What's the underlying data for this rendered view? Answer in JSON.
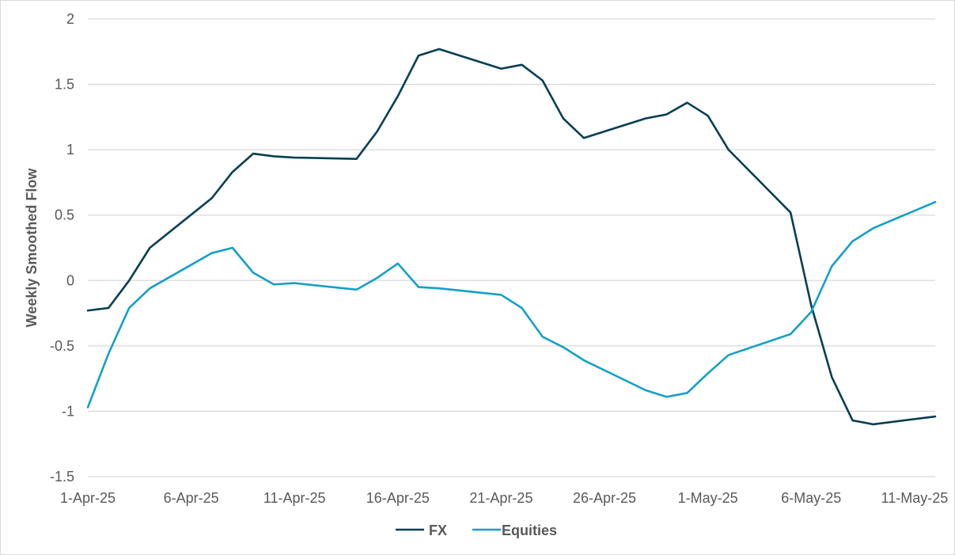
{
  "chart_data": {
    "type": "line",
    "ylabel": "Weekly Smoothed Flow",
    "xlabel": "",
    "ylim": [
      -1.5,
      2
    ],
    "yticks": [
      "2",
      "1.5",
      "1",
      "0.5",
      "0",
      "-0.5",
      "-1",
      "-1.5"
    ],
    "ytick_values": [
      2,
      1.5,
      1,
      0.5,
      0,
      -0.5,
      -1,
      -1.5
    ],
    "x_range": [
      "1-Apr-25",
      "12-May-25"
    ],
    "xticks": [
      {
        "date": "1-Apr-25",
        "label": "1-Apr-25"
      },
      {
        "date": "6-Apr-25",
        "label": "6-Apr-25"
      },
      {
        "date": "11-Apr-25",
        "label": "11-Apr-25"
      },
      {
        "date": "16-Apr-25",
        "label": "16-Apr-25"
      },
      {
        "date": "21-Apr-25",
        "label": "21-Apr-25"
      },
      {
        "date": "26-Apr-25",
        "label": "26-Apr-25"
      },
      {
        "date": "1-May-25",
        "label": "1-May-25"
      },
      {
        "date": "6-May-25",
        "label": "6-May-25"
      },
      {
        "date": "11-May-25",
        "label": "11-May-25"
      }
    ],
    "grid": "horizontal",
    "legend": "bottom",
    "series": [
      {
        "name": "FX",
        "color": "#073f52",
        "points": [
          [
            "1-Apr-25",
            -0.23
          ],
          [
            "2-Apr-25",
            -0.21
          ],
          [
            "3-Apr-25",
            0.0
          ],
          [
            "4-Apr-25",
            0.25
          ],
          [
            "7-Apr-25",
            0.63
          ],
          [
            "8-Apr-25",
            0.83
          ],
          [
            "9-Apr-25",
            0.97
          ],
          [
            "10-Apr-25",
            0.95
          ],
          [
            "11-Apr-25",
            0.94
          ],
          [
            "14-Apr-25",
            0.93
          ],
          [
            "15-Apr-25",
            1.14
          ],
          [
            "16-Apr-25",
            1.41
          ],
          [
            "17-Apr-25",
            1.72
          ],
          [
            "18-Apr-25",
            1.77
          ],
          [
            "21-Apr-25",
            1.62
          ],
          [
            "22-Apr-25",
            1.65
          ],
          [
            "23-Apr-25",
            1.53
          ],
          [
            "24-Apr-25",
            1.24
          ],
          [
            "25-Apr-25",
            1.09
          ],
          [
            "28-Apr-25",
            1.24
          ],
          [
            "29-Apr-25",
            1.27
          ],
          [
            "30-Apr-25",
            1.36
          ],
          [
            "1-May-25",
            1.26
          ],
          [
            "2-May-25",
            1.0
          ],
          [
            "5-May-25",
            0.52
          ],
          [
            "6-May-25",
            -0.19
          ],
          [
            "7-May-25",
            -0.74
          ],
          [
            "8-May-25",
            -1.07
          ],
          [
            "9-May-25",
            -1.1
          ],
          [
            "12-May-25",
            -1.04
          ]
        ]
      },
      {
        "name": "Equities",
        "color": "#14a0c8",
        "points": [
          [
            "1-Apr-25",
            -0.97
          ],
          [
            "2-Apr-25",
            -0.56
          ],
          [
            "3-Apr-25",
            -0.21
          ],
          [
            "4-Apr-25",
            -0.06
          ],
          [
            "7-Apr-25",
            0.21
          ],
          [
            "8-Apr-25",
            0.25
          ],
          [
            "9-Apr-25",
            0.06
          ],
          [
            "10-Apr-25",
            -0.03
          ],
          [
            "11-Apr-25",
            -0.02
          ],
          [
            "14-Apr-25",
            -0.07
          ],
          [
            "15-Apr-25",
            0.02
          ],
          [
            "16-Apr-25",
            0.13
          ],
          [
            "17-Apr-25",
            -0.05
          ],
          [
            "18-Apr-25",
            -0.06
          ],
          [
            "21-Apr-25",
            -0.11
          ],
          [
            "22-Apr-25",
            -0.21
          ],
          [
            "23-Apr-25",
            -0.43
          ],
          [
            "24-Apr-25",
            -0.51
          ],
          [
            "25-Apr-25",
            -0.61
          ],
          [
            "28-Apr-25",
            -0.84
          ],
          [
            "29-Apr-25",
            -0.89
          ],
          [
            "30-Apr-25",
            -0.86
          ],
          [
            "1-May-25",
            -0.71
          ],
          [
            "2-May-25",
            -0.57
          ],
          [
            "5-May-25",
            -0.41
          ],
          [
            "6-May-25",
            -0.24
          ],
          [
            "7-May-25",
            0.11
          ],
          [
            "8-May-25",
            0.3
          ],
          [
            "9-May-25",
            0.4
          ],
          [
            "12-May-25",
            0.6
          ]
        ]
      }
    ]
  }
}
